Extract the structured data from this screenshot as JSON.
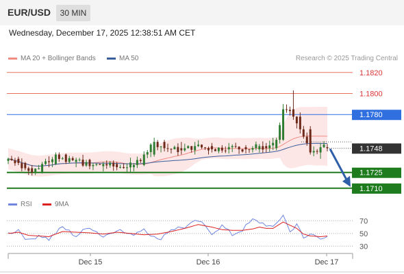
{
  "header": {
    "symbol": "EUR/USD",
    "timeframe": "30 MIN",
    "datetime": "Wednesday, December 17, 2025 12:38:51 AM CET"
  },
  "legend": {
    "ma20_label": "MA 20 + Bollinger Bands",
    "ma50_label": "MA 50",
    "copyright": "Research © 2025 Trading Central",
    "rsi_label": "RSI",
    "rsi_ma_label": "9MA"
  },
  "colors": {
    "ma20": "#f08c84",
    "ma50": "#3a5d9c",
    "bollinger_fill": "#fde2e2",
    "candle_up": "#2e7d32",
    "candle_down": "#6d2a1a",
    "support": "#1e7b1e",
    "pivot": "#2f6fe0",
    "resistance": "#e87060",
    "rsi_line": "#6f86e0",
    "rsi_ma": "#dd2020",
    "last_price_box": "#333333"
  },
  "chart_data": [
    {
      "type": "candlestick",
      "title": "EUR/USD",
      "x": [
        "Dec 15",
        "Dec 16",
        "Dec 17"
      ],
      "ylim": [
        1.1704,
        1.1827
      ],
      "last_price": 1.1748,
      "levels": [
        {
          "value": 1.182,
          "label": "1.1820",
          "kind": "resistance"
        },
        {
          "value": 1.18,
          "label": "1.1800",
          "kind": "resistance"
        },
        {
          "value": 1.178,
          "label": "1.1780",
          "kind": "pivot"
        },
        {
          "value": 1.1725,
          "label": "1.1725",
          "kind": "support"
        },
        {
          "value": 1.171,
          "label": "1.1710",
          "kind": "support"
        }
      ],
      "target_arrow": {
        "from": 1.1748,
        "to": 1.171,
        "direction": "down"
      },
      "series": [
        {
          "name": "MA 20 + Bollinger Bands",
          "style": "line"
        },
        {
          "name": "MA 50",
          "style": "line"
        }
      ],
      "ohlc_anchors": [
        [
          1.1736,
          1.1739,
          1.1733,
          1.1738
        ],
        [
          1.1738,
          1.174,
          1.1732,
          1.1734
        ],
        [
          1.1734,
          1.1735,
          1.1727,
          1.1729
        ],
        [
          1.1729,
          1.1732,
          1.1722,
          1.1725
        ],
        [
          1.1725,
          1.1735,
          1.1724,
          1.1733
        ],
        [
          1.1733,
          1.1744,
          1.1732,
          1.1742
        ],
        [
          1.1742,
          1.1743,
          1.1733,
          1.1735
        ],
        [
          1.1735,
          1.1739,
          1.173,
          1.1737
        ],
        [
          1.1737,
          1.1738,
          1.1728,
          1.1731
        ],
        [
          1.1731,
          1.1735,
          1.1726,
          1.1733
        ],
        [
          1.1733,
          1.1735,
          1.1727,
          1.173
        ],
        [
          1.173,
          1.1734,
          1.1726,
          1.1732
        ],
        [
          1.1732,
          1.1745,
          1.1731,
          1.1742
        ],
        [
          1.1742,
          1.1758,
          1.174,
          1.1754
        ],
        [
          1.1754,
          1.1756,
          1.1745,
          1.1748
        ],
        [
          1.1748,
          1.1754,
          1.1742,
          1.1746
        ],
        [
          1.1746,
          1.1754,
          1.1742,
          1.175
        ],
        [
          1.175,
          1.1753,
          1.1744,
          1.1747
        ],
        [
          1.1747,
          1.1753,
          1.1743,
          1.1749
        ],
        [
          1.1749,
          1.1751,
          1.1743,
          1.1747
        ],
        [
          1.1747,
          1.1752,
          1.1744,
          1.175
        ],
        [
          1.175,
          1.1753,
          1.1744,
          1.1748
        ],
        [
          1.1748,
          1.1758,
          1.1746,
          1.1756
        ],
        [
          1.1756,
          1.179,
          1.1755,
          1.1785
        ],
        [
          1.1785,
          1.1803,
          1.1775,
          1.1778
        ],
        [
          1.1778,
          1.1782,
          1.1762,
          1.1766
        ],
        [
          1.1766,
          1.1769,
          1.1742,
          1.1744
        ],
        [
          1.1744,
          1.1753,
          1.1738,
          1.1749
        ],
        [
          1.1749,
          1.1752,
          1.1745,
          1.1748
        ]
      ],
      "anchor_times": [
        0,
        3,
        5,
        7,
        10,
        14,
        17,
        20,
        24,
        28,
        32,
        37,
        40,
        43,
        46,
        51,
        55,
        60,
        65,
        70,
        74,
        76,
        79,
        81,
        84,
        86,
        89,
        92,
        94
      ]
    },
    {
      "type": "line",
      "title": "RSI",
      "ylim": [
        25,
        80
      ],
      "yticks": [
        70,
        50,
        30
      ],
      "series": [
        {
          "name": "RSI",
          "anchors": [
            50,
            56,
            38,
            48,
            41,
            60,
            46,
            61,
            45,
            57,
            47,
            58,
            39,
            57,
            60,
            70,
            51,
            62,
            48,
            56,
            71,
            68,
            64,
            58,
            80,
            52,
            66,
            41,
            49,
            44,
            46
          ]
        },
        {
          "name": "9MA",
          "anchors": [
            50,
            52,
            47,
            46,
            45,
            53,
            52,
            51,
            49,
            52,
            50,
            48,
            49,
            53,
            58,
            64,
            60,
            56,
            55,
            55,
            57,
            60,
            58,
            58,
            68,
            63,
            58,
            49,
            46,
            45,
            46
          ]
        }
      ],
      "anchor_times": [
        0,
        3,
        6,
        9,
        12,
        16,
        20,
        24,
        28,
        32,
        36,
        40,
        44,
        48,
        52,
        56,
        60,
        63,
        66,
        69,
        72,
        74,
        76,
        78,
        81,
        83,
        85,
        87,
        89,
        92,
        94
      ]
    }
  ]
}
